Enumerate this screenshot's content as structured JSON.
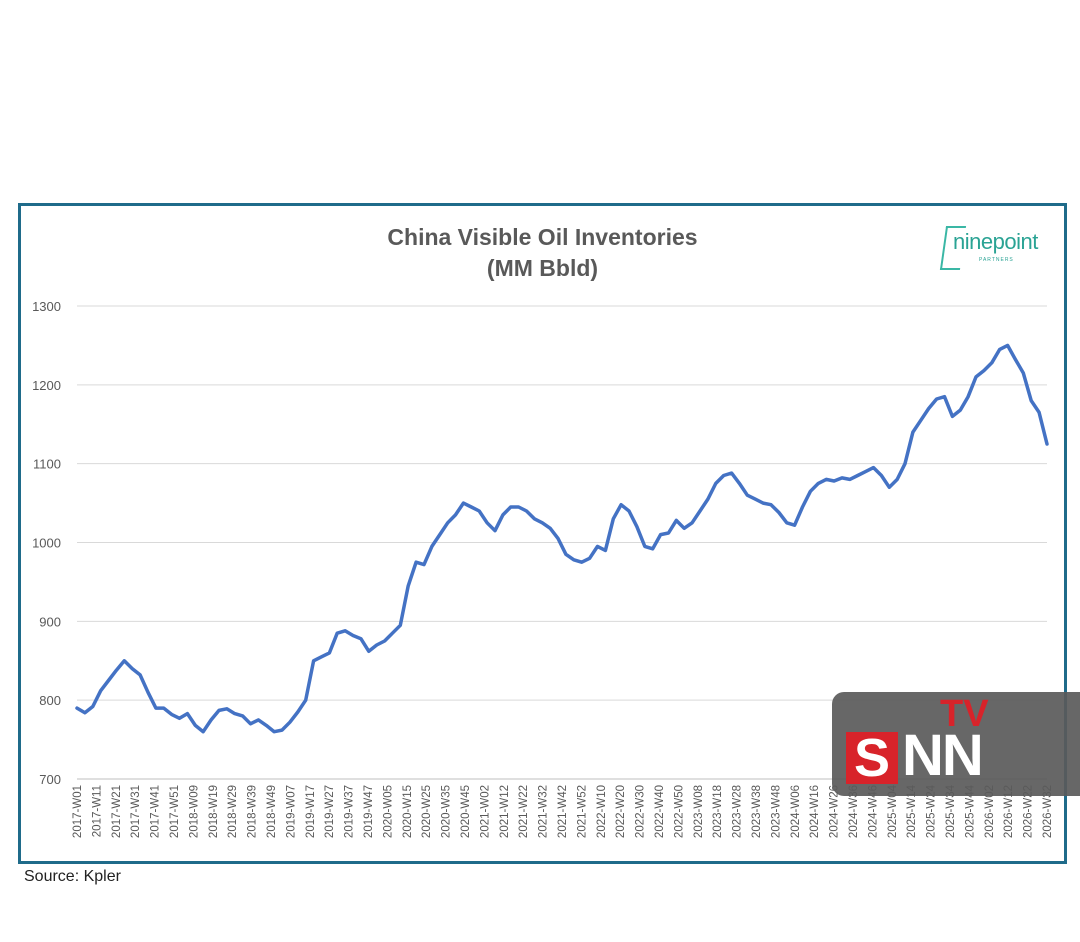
{
  "source_label": "Source: Kpler",
  "logo": {
    "brand": "ninepoint",
    "tagline": "PARTNERS"
  },
  "watermark": {
    "letter": "S",
    "rest": "NN",
    "tv": "TV"
  },
  "colors": {
    "frame": "#1f6b8a",
    "line": "#4472c4",
    "grid": "#d9d9d9"
  },
  "chart_data": {
    "type": "line",
    "title": "China Visible Oil Inventories",
    "subtitle": "(MM Bbld)",
    "xlabel": "",
    "ylabel": "",
    "ylim": [
      700,
      1300
    ],
    "yticks": [
      700,
      800,
      900,
      1000,
      1100,
      1200,
      1300
    ],
    "grid": true,
    "legend": "none",
    "x_tick_labels": [
      "2017-W01",
      "2017-W11",
      "2017-W21",
      "2017-W31",
      "2017-W41",
      "2017-W51",
      "2018-W09",
      "2018-W19",
      "2018-W29",
      "2018-W39",
      "2018-W49",
      "2019-W07",
      "2019-W17",
      "2019-W27",
      "2019-W37",
      "2019-W47",
      "2020-W05",
      "2020-W15",
      "2020-W25",
      "2020-W35",
      "2020-W45",
      "2021-W02",
      "2021-W12",
      "2021-W22",
      "2021-W32",
      "2021-W42",
      "2021-W52",
      "2022-W10",
      "2022-W20",
      "2022-W30",
      "2022-W40",
      "2022-W50",
      "2023-W08",
      "2023-W18",
      "2023-W28",
      "2023-W38",
      "2023-W48",
      "2024-W06",
      "2024-W16",
      "2024-W26",
      "2024-W36",
      "2024-W46",
      "2025-W04",
      "2025-W14",
      "2025-W24",
      "2025-W34",
      "2025-W44",
      "2026-W02",
      "2026-W12",
      "2026-W22",
      "2026-W32"
    ],
    "series": [
      {
        "values": [
          790,
          784,
          792,
          812,
          825,
          838,
          850,
          840,
          832,
          810,
          790,
          790,
          782,
          777,
          783,
          768,
          760,
          775,
          787,
          789,
          783,
          780,
          770,
          775,
          768,
          760,
          762,
          772,
          785,
          800,
          850,
          855,
          860,
          885,
          888,
          882,
          878,
          862,
          870,
          875,
          885,
          895,
          945,
          975,
          972,
          995,
          1010,
          1025,
          1035,
          1050,
          1045,
          1040,
          1025,
          1015,
          1035,
          1045,
          1045,
          1040,
          1030,
          1025,
          1018,
          1005,
          985,
          978,
          975,
          980,
          995,
          990,
          1030,
          1048,
          1040,
          1020,
          995,
          992,
          1010,
          1012,
          1028,
          1018,
          1025,
          1040,
          1055,
          1075,
          1085,
          1088,
          1075,
          1060,
          1055,
          1050,
          1048,
          1038,
          1025,
          1022,
          1045,
          1065,
          1075,
          1080,
          1078,
          1082,
          1080,
          1085,
          1090,
          1095,
          1085,
          1070,
          1080,
          1100,
          1140,
          1155,
          1170,
          1182,
          1185,
          1160,
          1168,
          1185,
          1210,
          1218,
          1228,
          1245,
          1250,
          1232,
          1215,
          1180,
          1165,
          1125
        ],
        "color": "#4472c4"
      }
    ]
  }
}
